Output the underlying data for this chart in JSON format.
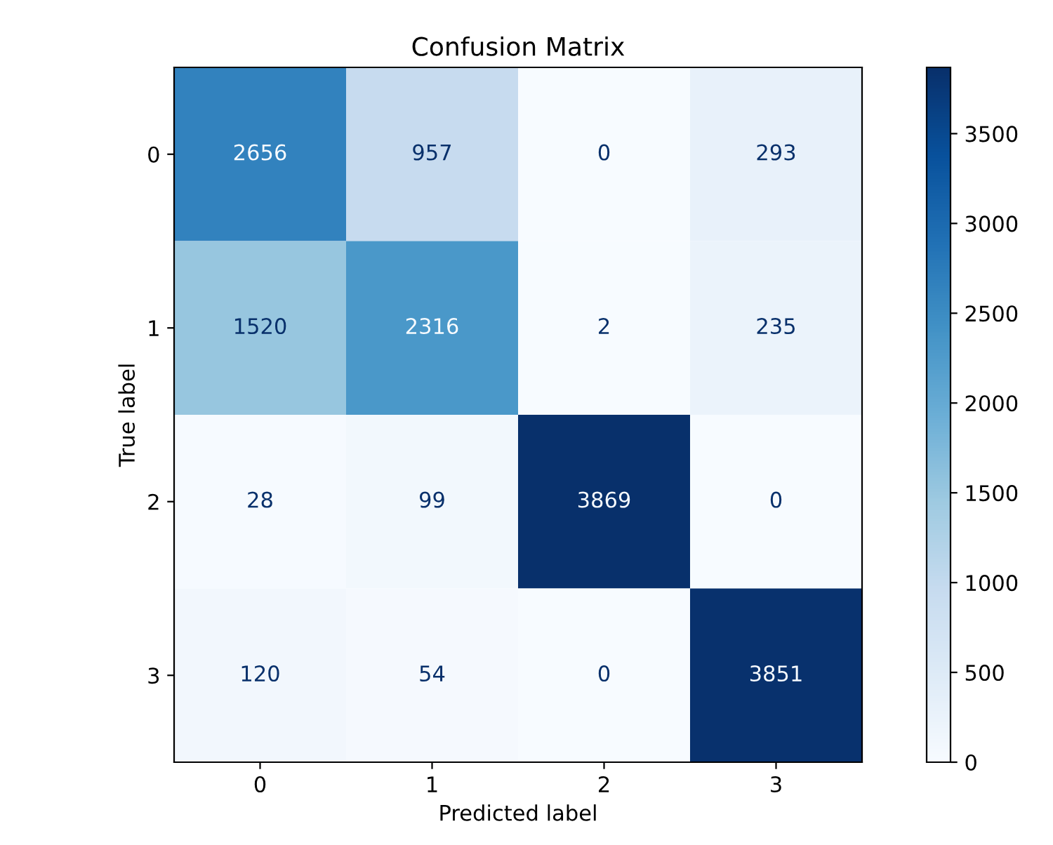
{
  "chart_data": {
    "type": "heatmap",
    "title": "Confusion Matrix",
    "xlabel": "Predicted label",
    "ylabel": "True label",
    "categories": [
      "0",
      "1",
      "2",
      "3"
    ],
    "y_categories": [
      "0",
      "1",
      "2",
      "3"
    ],
    "cells": [
      [
        2656,
        957,
        0,
        293
      ],
      [
        1520,
        2316,
        2,
        235
      ],
      [
        28,
        99,
        3869,
        0
      ],
      [
        120,
        54,
        0,
        3851
      ]
    ],
    "data_labels": true,
    "clim": [
      0,
      3869
    ],
    "cticks": [
      0,
      500,
      1000,
      1500,
      2000,
      2500,
      3000,
      3500
    ],
    "grid": false
  }
}
